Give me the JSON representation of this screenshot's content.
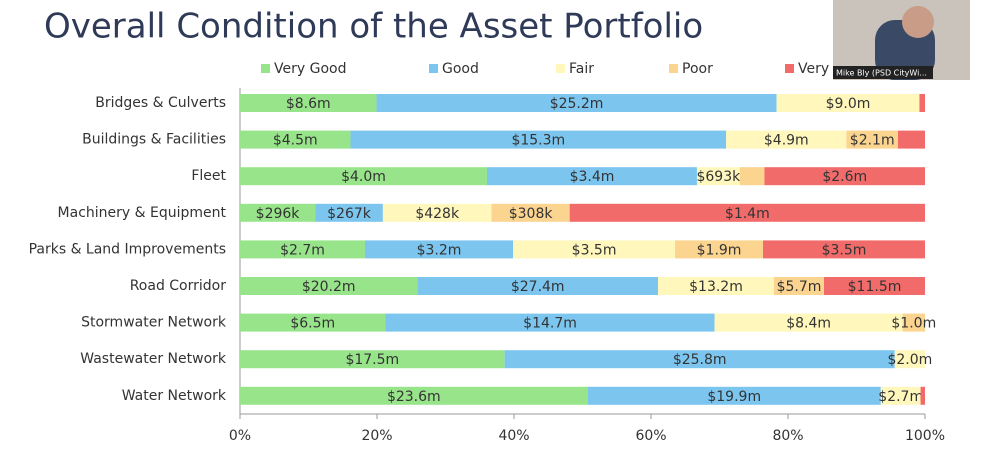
{
  "chart_data": {
    "type": "bar",
    "orientation": "horizontal",
    "stack": "percent",
    "title": "Overall Condition of the Asset Portfolio",
    "categories": [
      "Bridges & Culverts",
      "Buildings & Facilities",
      "Fleet",
      "Machinery & Equipment",
      "Parks & Land Improvements",
      "Road Corridor",
      "Stormwater Network",
      "Wastewater Network",
      "Water Network"
    ],
    "series": [
      {
        "name": "Very Good",
        "color": "#98e48a",
        "values": [
          8600000,
          4500000,
          4000000,
          296000,
          2700000,
          20200000,
          6500000,
          17500000,
          23600000
        ],
        "value_labels": [
          "$8.6m",
          "$4.5m",
          "$4.0m",
          "$296k",
          "$2.7m",
          "$20.2m",
          "$6.5m",
          "$17.5m",
          "$23.6m"
        ]
      },
      {
        "name": "Good",
        "color": "#7cc5ef",
        "values": [
          25200000,
          15300000,
          3400000,
          267000,
          3200000,
          27400000,
          14700000,
          25800000,
          19900000
        ],
        "value_labels": [
          "$25.2m",
          "$15.3m",
          "$3.4m",
          "$267k",
          "$3.2m",
          "$27.4m",
          "$14.7m",
          "$25.8m",
          "$19.9m"
        ]
      },
      {
        "name": "Fair",
        "color": "#fff7bb",
        "values": [
          9000000,
          4900000,
          693000,
          428000,
          3500000,
          13200000,
          8400000,
          2000000,
          2700000
        ],
        "value_labels": [
          "$9.0m",
          "$4.9m",
          "$693k",
          "$428k",
          "$3.5m",
          "$13.2m",
          "$8.4m",
          "$2.0m",
          "$2.7m"
        ]
      },
      {
        "name": "Poor",
        "color": "#fbd490",
        "values": [
          null,
          2100000,
          400000,
          308000,
          1900000,
          5700000,
          1000000,
          null,
          null
        ],
        "value_labels": [
          null,
          "$2.1m",
          null,
          "$308k",
          "$1.9m",
          "$5.7m",
          "$1.0m",
          null,
          null
        ]
      },
      {
        "name": "Very Poor",
        "color": "#f26b6b",
        "values": [
          350000,
          1100000,
          2600000,
          1400000,
          3500000,
          11500000,
          null,
          null,
          300000
        ],
        "value_labels": [
          null,
          null,
          "$2.6m",
          "$1.4m",
          "$3.5m",
          "$11.5m",
          null,
          null,
          null
        ]
      }
    ],
    "xlim": [
      0,
      100
    ],
    "xticks": [
      {
        "value": 0,
        "label": "0%"
      },
      {
        "value": 20,
        "label": "20%"
      },
      {
        "value": 40,
        "label": "40%"
      },
      {
        "value": 60,
        "label": "60%"
      },
      {
        "value": 80,
        "label": "80%"
      },
      {
        "value": 100,
        "label": "100%"
      }
    ],
    "legend": "top"
  },
  "overlay": {
    "caption": "Mike Bly (PSD CityWi..."
  }
}
